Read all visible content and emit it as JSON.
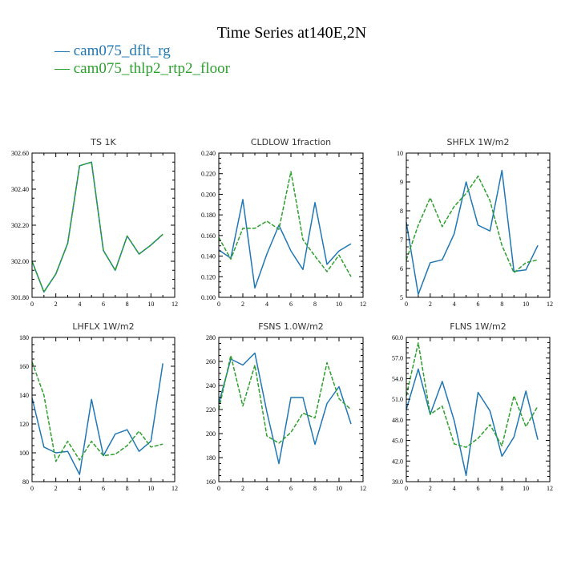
{
  "figure": {
    "title": "Time Series at140E,2N",
    "legend": [
      {
        "label": "— cam075_dflt_rg",
        "color": "#1f77b4"
      },
      {
        "label": "— cam075_thlp2_rtp2_floor",
        "color": "#2ca02c"
      }
    ]
  },
  "colors": {
    "series_a": "#1f77b4",
    "series_b": "#2ca02c"
  },
  "chart_data": [
    {
      "type": "line",
      "title": "TS   1K",
      "xlim": [
        0,
        12
      ],
      "xticks": [
        0,
        2,
        4,
        6,
        8,
        10,
        12
      ],
      "ylim": [
        301.8,
        302.6
      ],
      "yticks": [
        "301.80",
        "302.00",
        "302.20",
        "302.40",
        "302.60"
      ],
      "x": [
        0,
        1,
        2,
        3,
        4,
        5,
        6,
        7,
        8,
        9,
        10,
        11
      ],
      "series": [
        {
          "values": [
            302.0,
            301.83,
            301.93,
            302.1,
            302.53,
            302.55,
            302.06,
            301.95,
            302.14,
            302.04,
            302.09,
            302.15
          ]
        },
        {
          "values": [
            302.0,
            301.83,
            301.93,
            302.1,
            302.53,
            302.55,
            302.06,
            301.95,
            302.14,
            302.04,
            302.09,
            302.15
          ]
        }
      ]
    },
    {
      "type": "line",
      "title": "CLDLOW   1fraction",
      "xlim": [
        0,
        12
      ],
      "xticks": [
        0,
        2,
        4,
        6,
        8,
        10,
        12
      ],
      "ylim": [
        0.1,
        0.24
      ],
      "yticks": [
        "0.100",
        "0.120",
        "0.140",
        "0.160",
        "0.180",
        "0.200",
        "0.220",
        "0.240"
      ],
      "x": [
        0,
        1,
        2,
        3,
        4,
        5,
        6,
        7,
        8,
        9,
        10,
        11
      ],
      "series": [
        {
          "values": [
            0.146,
            0.138,
            0.195,
            0.109,
            0.142,
            0.17,
            0.145,
            0.127,
            0.192,
            0.132,
            0.145,
            0.152
          ]
        },
        {
          "values": [
            0.158,
            0.137,
            0.167,
            0.167,
            0.174,
            0.166,
            0.222,
            0.156,
            0.14,
            0.125,
            0.141,
            0.12
          ]
        }
      ]
    },
    {
      "type": "line",
      "title": "SHFLX   1W/m2",
      "xlim": [
        0,
        12
      ],
      "xticks": [
        0,
        2,
        4,
        6,
        8,
        10,
        12
      ],
      "ylim": [
        5,
        10
      ],
      "yticks": [
        "5",
        "6",
        "7",
        "8",
        "9",
        "10"
      ],
      "x": [
        0,
        1,
        2,
        3,
        4,
        5,
        6,
        7,
        8,
        9,
        10,
        11
      ],
      "series": [
        {
          "values": [
            7.6,
            5.1,
            6.2,
            6.3,
            7.2,
            9.0,
            7.5,
            7.3,
            9.4,
            5.9,
            5.95,
            6.8
          ]
        },
        {
          "values": [
            6.3,
            7.5,
            8.45,
            7.45,
            8.15,
            8.6,
            9.2,
            8.35,
            6.8,
            5.85,
            6.2,
            6.3
          ]
        }
      ]
    },
    {
      "type": "line",
      "title": "LHFLX   1W/m2",
      "xlim": [
        0,
        12
      ],
      "xticks": [
        0,
        2,
        4,
        6,
        8,
        10,
        12
      ],
      "ylim": [
        80,
        180
      ],
      "yticks": [
        "80",
        "100",
        "120",
        "140",
        "160",
        "180"
      ],
      "x": [
        0,
        1,
        2,
        3,
        4,
        5,
        6,
        7,
        8,
        9,
        10,
        11
      ],
      "series": [
        {
          "values": [
            138,
            104,
            100,
            101,
            85,
            137,
            98,
            113,
            116,
            101,
            108,
            162
          ]
        },
        {
          "values": [
            163,
            140,
            94,
            108,
            95,
            108,
            98,
            99,
            105,
            115,
            104,
            106
          ]
        }
      ]
    },
    {
      "type": "line",
      "title": "FSNS   1.0W/m2",
      "xlim": [
        0,
        12
      ],
      "xticks": [
        0,
        2,
        4,
        6,
        8,
        10,
        12
      ],
      "ylim": [
        160,
        280
      ],
      "yticks": [
        "160",
        "180",
        "200",
        "220",
        "240",
        "260",
        "280"
      ],
      "x": [
        0,
        1,
        2,
        3,
        4,
        5,
        6,
        7,
        8,
        9,
        10,
        11
      ],
      "series": [
        {
          "values": [
            225,
            262,
            257,
            267,
            218,
            175,
            230,
            230,
            191,
            225,
            239,
            208
          ]
        },
        {
          "values": [
            220,
            265,
            223,
            257,
            198,
            192,
            201,
            217,
            213,
            259,
            229,
            220
          ]
        }
      ]
    },
    {
      "type": "line",
      "title": "FLNS   1W/m2",
      "xlim": [
        0,
        12
      ],
      "xticks": [
        0,
        2,
        4,
        6,
        8,
        10,
        12
      ],
      "ylim": [
        39,
        60
      ],
      "yticks": [
        "39.0",
        "42.0",
        "45.0",
        "48.0",
        "51.0",
        "54.0",
        "57.0",
        "60.0"
      ],
      "x": [
        0,
        1,
        2,
        3,
        4,
        5,
        6,
        7,
        8,
        9,
        10,
        11
      ],
      "series": [
        {
          "values": [
            49.5,
            55.4,
            48.8,
            53.6,
            47.9,
            39.9,
            52.0,
            49.3,
            42.7,
            45.5,
            52.2,
            45.1
          ]
        },
        {
          "values": [
            51.5,
            59.2,
            48.8,
            50.0,
            44.5,
            44.0,
            45.3,
            47.3,
            44.2,
            51.5,
            47.0,
            50.0
          ]
        }
      ]
    }
  ]
}
